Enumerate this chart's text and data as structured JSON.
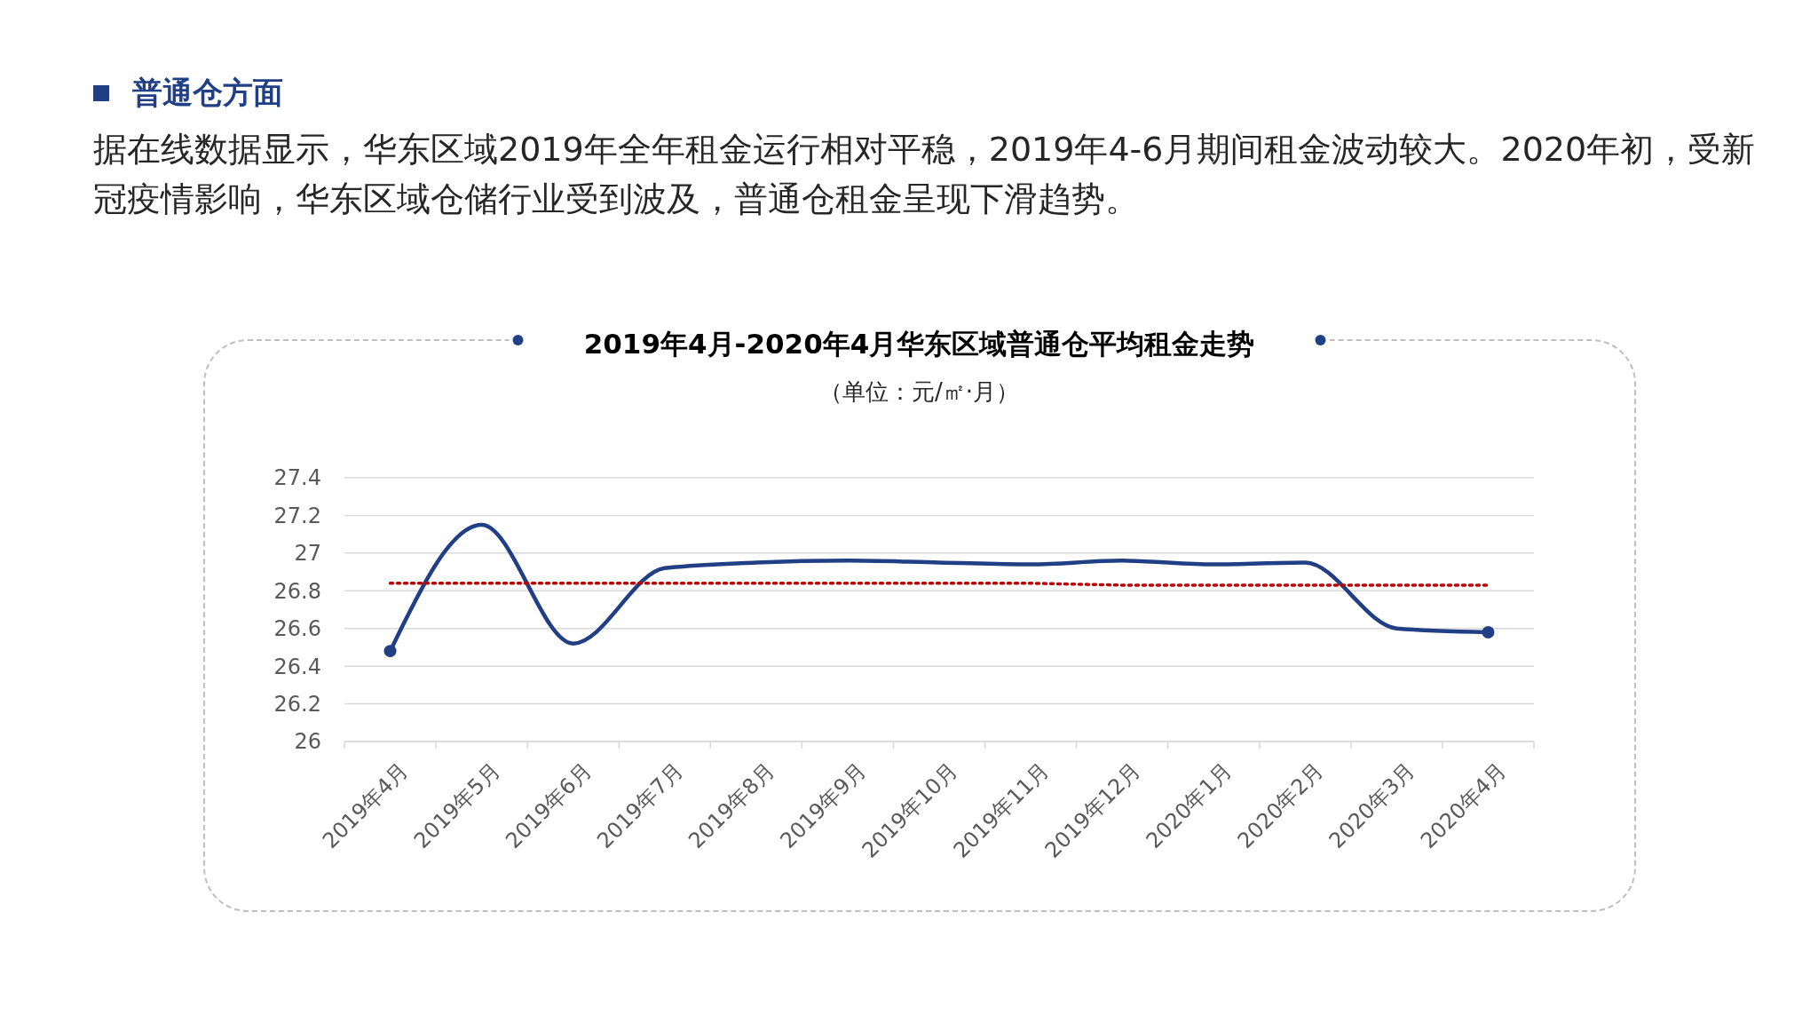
{
  "chart_data": {
    "type": "line",
    "title": "2019年4月-2020年4月华东区域普通仓平均租金走势",
    "subtitle": "（单位：元/㎡·月）",
    "annotations": [
      "普通仓方面",
      "据在线数据显示，华东区域2019年全年租金运行相对平稳，2019年4-6月期间租金波动较大。2020年初，受新冠疫情影响，华东区域仓储行业受到波及，普通仓租金呈现下滑趋势。"
    ],
    "categories": [
      "2019年4月",
      "2019年5月",
      "2019年6月",
      "2019年7月",
      "2019年8月",
      "2019年9月",
      "2019年10月",
      "2019年11月",
      "2019年12月",
      "2020年1月",
      "2020年2月",
      "2020年3月",
      "2020年4月"
    ],
    "series": [
      {
        "color": "#203f84",
        "marker": "none",
        "line_style": "solid",
        "values": [
          26.48,
          27.15,
          26.52,
          26.92,
          26.95,
          26.96,
          26.95,
          26.94,
          26.96,
          26.94,
          26.95,
          26.6,
          26.58
        ]
      },
      {
        "color": "#c00000",
        "marker": "none",
        "line_style": "dotted",
        "values": [
          26.84,
          26.84,
          26.84,
          26.84,
          26.84,
          26.84,
          26.84,
          26.84,
          26.83,
          26.83,
          26.83,
          26.83,
          26.83
        ]
      }
    ],
    "ylim": [
      26,
      27.4
    ],
    "yticks": [
      26,
      26.2,
      26.4,
      26.6,
      26.8,
      27,
      27.2,
      27.4
    ],
    "grid": "y"
  }
}
